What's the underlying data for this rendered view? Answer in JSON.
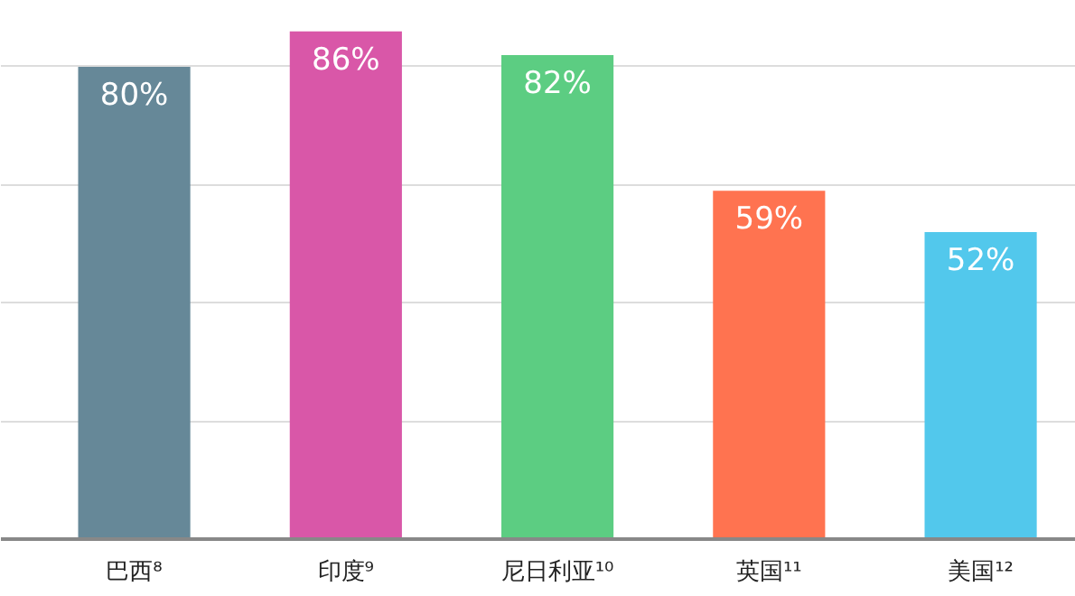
{
  "chart_data": {
    "type": "bar",
    "categories": [
      "巴西⁸",
      "印度⁹",
      "尼日利亚¹⁰",
      "英国¹¹",
      "美国¹²"
    ],
    "values": [
      80,
      86,
      82,
      59,
      52
    ],
    "colors": [
      "#668898",
      "#d957a8",
      "#5ccd82",
      "#ff7350",
      "#52c8ec"
    ],
    "value_labels": [
      "80%",
      "86%",
      "82%",
      "59%",
      "52%"
    ],
    "yticks": [
      {
        "value": 0,
        "label": null
      },
      {
        "value": 20,
        "label": null
      },
      {
        "value": 40,
        "label": null
      },
      {
        "value": 60,
        "label": null
      },
      {
        "value": 80,
        "label": null
      }
    ],
    "grid": "y",
    "tick_labels": "x"
  }
}
